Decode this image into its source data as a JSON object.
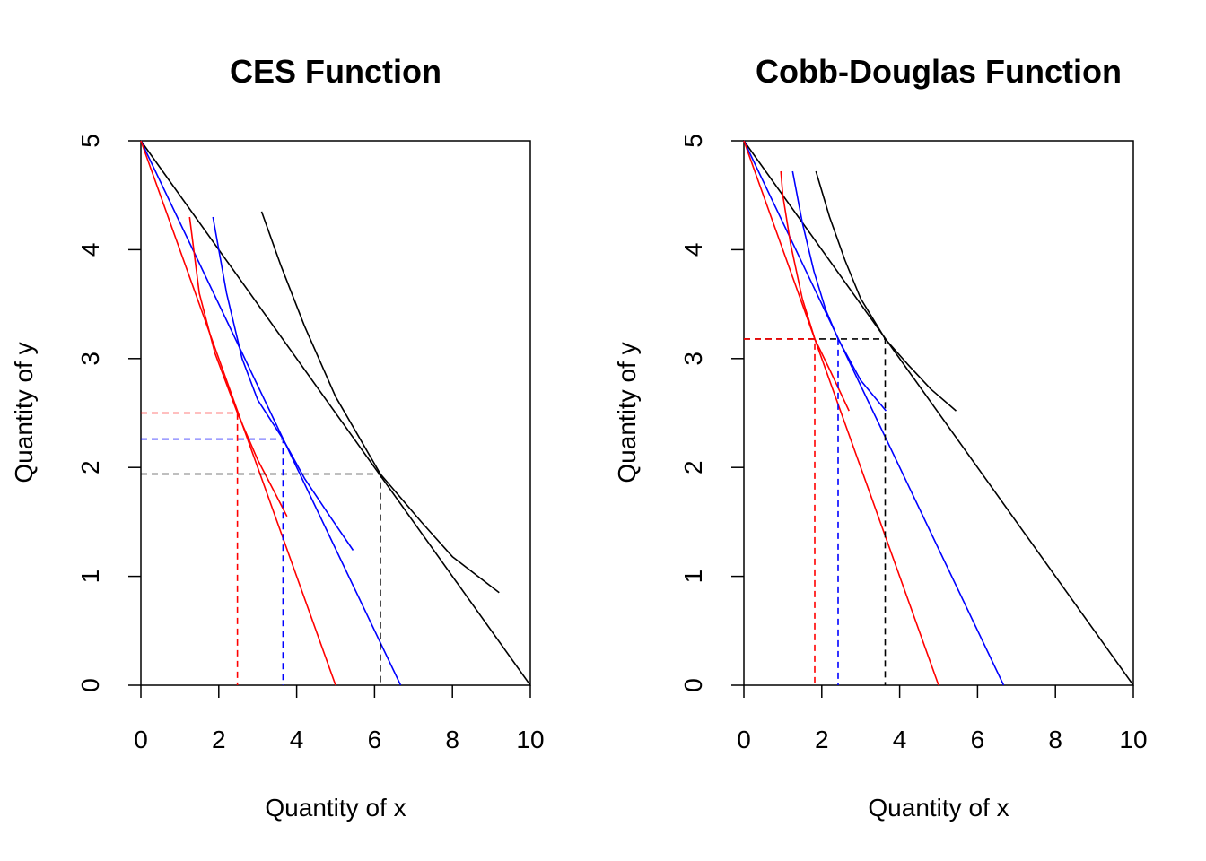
{
  "chart_data": [
    {
      "type": "line",
      "title": "CES Function",
      "xlabel": "Quantity of x",
      "ylabel": "Quantity of y",
      "xlim": [
        0,
        10
      ],
      "ylim": [
        0,
        5
      ],
      "xticks": [
        "0",
        "2",
        "4",
        "6",
        "8",
        "10"
      ],
      "yticks": [
        "0",
        "1",
        "2",
        "3",
        "4",
        "5"
      ],
      "series": [
        {
          "color": "#000000",
          "style": "solid",
          "points": [
            [
              0,
              5
            ],
            [
              10,
              0
            ]
          ]
        },
        {
          "color": "#0000ff",
          "style": "solid",
          "points": [
            [
              0,
              5
            ],
            [
              6.67,
              0
            ]
          ]
        },
        {
          "color": "#ff0000",
          "style": "solid",
          "points": [
            [
              0,
              5
            ],
            [
              5,
              0
            ]
          ]
        },
        {
          "color": "#000000",
          "style": "solid",
          "points": [
            [
              3.1,
              4.35
            ],
            [
              3.6,
              3.85
            ],
            [
              4.2,
              3.3
            ],
            [
              5.0,
              2.65
            ],
            [
              6.15,
              1.94
            ],
            [
              7.2,
              1.5
            ],
            [
              8.0,
              1.18
            ],
            [
              9.2,
              0.85
            ]
          ]
        },
        {
          "color": "#0000ff",
          "style": "solid",
          "points": [
            [
              1.85,
              4.3
            ],
            [
              2.2,
              3.6
            ],
            [
              2.6,
              3.0
            ],
            [
              3.0,
              2.62
            ],
            [
              3.65,
              2.26
            ],
            [
              4.2,
              1.9
            ],
            [
              4.8,
              1.58
            ],
            [
              5.45,
              1.24
            ]
          ]
        },
        {
          "color": "#ff0000",
          "style": "solid",
          "points": [
            [
              1.25,
              4.3
            ],
            [
              1.5,
              3.6
            ],
            [
              1.9,
              3.05
            ],
            [
              2.48,
              2.5
            ],
            [
              3.0,
              2.07
            ],
            [
              3.45,
              1.76
            ],
            [
              3.75,
              1.55
            ]
          ]
        },
        {
          "color": "#000000",
          "style": "dashed",
          "points": [
            [
              0,
              1.94
            ],
            [
              6.15,
              1.94
            ],
            [
              6.15,
              0
            ]
          ]
        },
        {
          "color": "#0000ff",
          "style": "dashed",
          "points": [
            [
              0,
              2.26
            ],
            [
              3.65,
              2.26
            ],
            [
              3.65,
              0
            ]
          ]
        },
        {
          "color": "#ff0000",
          "style": "dashed",
          "points": [
            [
              0,
              2.5
            ],
            [
              2.48,
              2.5
            ],
            [
              2.48,
              0
            ]
          ]
        }
      ]
    },
    {
      "type": "line",
      "title": "Cobb-Douglas Function",
      "xlabel": "Quantity of x",
      "ylabel": "Quantity of y",
      "xlim": [
        0,
        10
      ],
      "ylim": [
        0,
        5
      ],
      "xticks": [
        "0",
        "2",
        "4",
        "6",
        "8",
        "10"
      ],
      "yticks": [
        "0",
        "1",
        "2",
        "3",
        "4",
        "5"
      ],
      "series": [
        {
          "color": "#000000",
          "style": "solid",
          "points": [
            [
              0,
              5
            ],
            [
              10,
              0
            ]
          ]
        },
        {
          "color": "#0000ff",
          "style": "solid",
          "points": [
            [
              0,
              5
            ],
            [
              6.67,
              0
            ]
          ]
        },
        {
          "color": "#ff0000",
          "style": "solid",
          "points": [
            [
              0,
              5
            ],
            [
              5,
              0
            ]
          ]
        },
        {
          "color": "#000000",
          "style": "solid",
          "points": [
            [
              1.85,
              4.72
            ],
            [
              2.2,
              4.3
            ],
            [
              2.6,
              3.9
            ],
            [
              3.0,
              3.55
            ],
            [
              3.63,
              3.18
            ],
            [
              4.2,
              2.95
            ],
            [
              4.8,
              2.72
            ],
            [
              5.45,
              2.52
            ]
          ]
        },
        {
          "color": "#0000ff",
          "style": "solid",
          "points": [
            [
              1.25,
              4.72
            ],
            [
              1.5,
              4.25
            ],
            [
              1.8,
              3.8
            ],
            [
              2.1,
              3.45
            ],
            [
              2.42,
              3.18
            ],
            [
              3.0,
              2.8
            ],
            [
              3.65,
              2.52
            ]
          ]
        },
        {
          "color": "#ff0000",
          "style": "solid",
          "points": [
            [
              0.95,
              4.72
            ],
            [
              1.0,
              4.5
            ],
            [
              1.2,
              4.05
            ],
            [
              1.5,
              3.55
            ],
            [
              1.82,
              3.18
            ],
            [
              2.2,
              2.9
            ],
            [
              2.7,
              2.52
            ]
          ]
        },
        {
          "color": "#000000",
          "style": "dashed",
          "points": [
            [
              0,
              3.18
            ],
            [
              3.63,
              3.18
            ],
            [
              3.63,
              0
            ]
          ]
        },
        {
          "color": "#0000ff",
          "style": "dashed",
          "points": [
            [
              2.42,
              3.18
            ],
            [
              2.42,
              0
            ]
          ]
        },
        {
          "color": "#ff0000",
          "style": "dashed",
          "points": [
            [
              0,
              3.18
            ],
            [
              1.82,
              3.18
            ],
            [
              1.82,
              0
            ]
          ]
        }
      ]
    }
  ]
}
